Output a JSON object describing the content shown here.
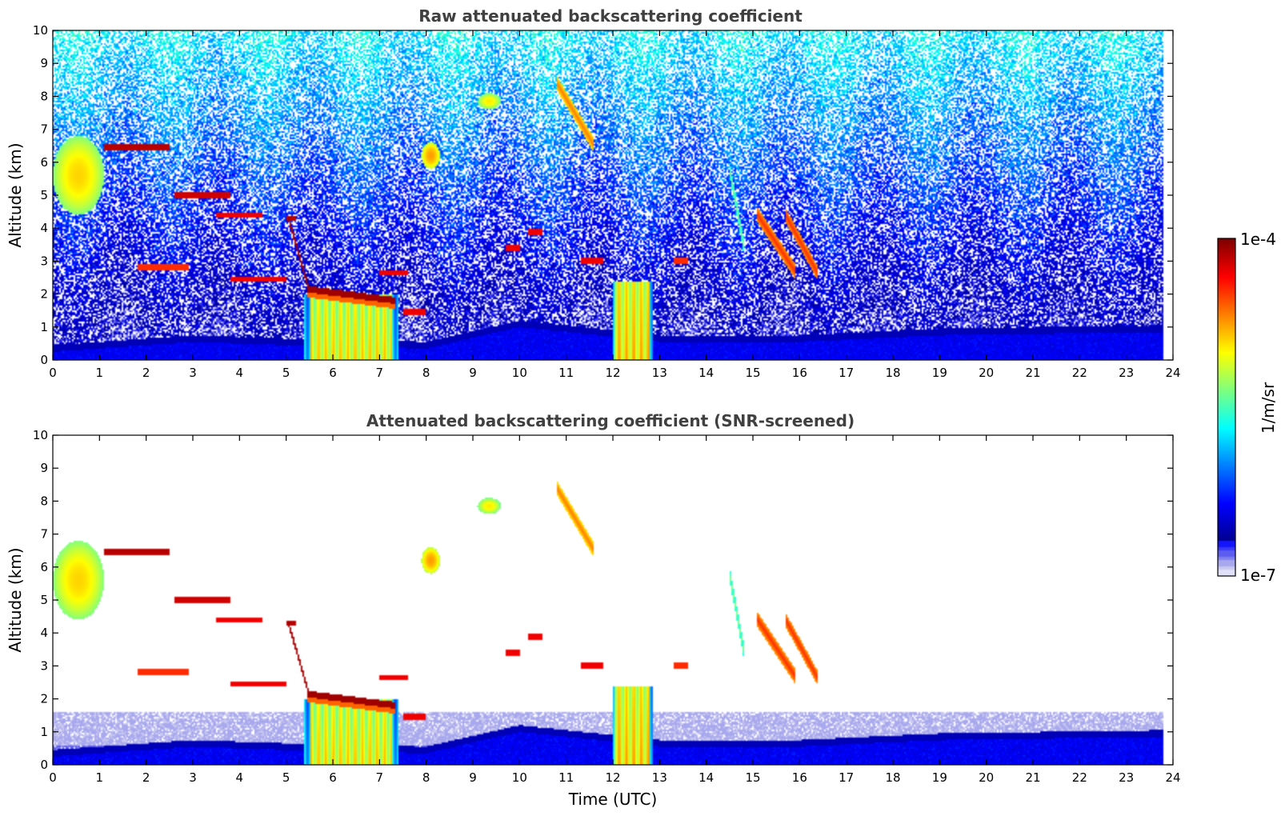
{
  "colors": {
    "jet": [
      "#00008f",
      "#0000ff",
      "#007fff",
      "#00ffff",
      "#7fff7f",
      "#ffff00",
      "#ff7f00",
      "#ff0000",
      "#7f0000"
    ],
    "low_levels": [
      "#e0e0f8",
      "#c8c8f0",
      "#a8a8ee",
      "#8080ee",
      "#5c5cf0",
      "#3a3af6",
      "#1515fc"
    ],
    "frame": "#000000",
    "title_color": "#404040"
  },
  "chart_data": [
    {
      "type": "heatmap",
      "title": "Raw attenuated backscattering coefficient",
      "ylabel": "Altitude (km)",
      "xlabel": "",
      "xlim": [
        0,
        24
      ],
      "ylim": [
        0,
        10
      ],
      "x_ticks": [
        "0",
        "1",
        "2",
        "3",
        "4",
        "5",
        "6",
        "7",
        "8",
        "9",
        "10",
        "11",
        "12",
        "13",
        "14",
        "15",
        "16",
        "17",
        "18",
        "19",
        "20",
        "21",
        "22",
        "23",
        "24"
      ],
      "y_ticks": [
        "0",
        "1",
        "2",
        "3",
        "4",
        "5",
        "6",
        "7",
        "8",
        "9",
        "10"
      ],
      "data_end_time": 23.8,
      "noise": "strong (noisy background at all altitudes)",
      "boundary_layer": [
        {
          "t": 0,
          "top": 0.25
        },
        {
          "t": 3,
          "top": 0.55
        },
        {
          "t": 5,
          "top": 0.45
        },
        {
          "t": 8,
          "top": 0.35
        },
        {
          "t": 10,
          "top": 1.0
        },
        {
          "t": 13,
          "top": 0.55
        },
        {
          "t": 16,
          "top": 0.55
        },
        {
          "t": 19,
          "top": 0.75
        },
        {
          "t": 23.8,
          "top": 0.85
        }
      ],
      "features": [
        {
          "kind": "cloud",
          "t0": 0.0,
          "t1": 1.1,
          "z0": 4.4,
          "z1": 6.8,
          "level": 0.7
        },
        {
          "kind": "layer",
          "t0": 1.1,
          "t1": 2.5,
          "z": 6.45,
          "level": 0.95
        },
        {
          "kind": "layer",
          "t0": 2.6,
          "t1": 3.8,
          "z": 5.0,
          "level": 0.93
        },
        {
          "kind": "layer",
          "t0": 3.5,
          "t1": 4.5,
          "z": 4.4,
          "level": 0.9
        },
        {
          "kind": "layer",
          "t0": 1.8,
          "t1": 2.9,
          "z": 2.8,
          "level": 0.85
        },
        {
          "kind": "layer",
          "t0": 3.8,
          "t1": 5.0,
          "z": 2.45,
          "level": 0.9
        },
        {
          "kind": "layer",
          "t0": 5.0,
          "t1": 5.2,
          "z": 4.3,
          "level": 0.95
        },
        {
          "kind": "descending_layer",
          "t0": 5.05,
          "t1": 5.5,
          "z0": 4.3,
          "z1": 2.1,
          "level": 0.97
        },
        {
          "kind": "cloud_top",
          "t0": 5.45,
          "t1": 7.35,
          "z0": 2.15,
          "z1": 1.8,
          "level": 0.97
        },
        {
          "kind": "precipitation",
          "t0": 5.4,
          "t1": 7.4,
          "z0": 0.0,
          "z1": 2.0,
          "level": 0.65
        },
        {
          "kind": "layer",
          "t0": 7.0,
          "t1": 7.6,
          "z": 2.65,
          "level": 0.9
        },
        {
          "kind": "layer",
          "t0": 7.5,
          "t1": 8.0,
          "z": 1.45,
          "level": 0.9
        },
        {
          "kind": "cloud",
          "t0": 7.9,
          "t1": 8.3,
          "z0": 5.8,
          "z1": 6.6,
          "level": 0.75
        },
        {
          "kind": "cloud",
          "t0": 9.1,
          "t1": 9.6,
          "z0": 7.6,
          "z1": 8.1,
          "level": 0.68
        },
        {
          "kind": "layer",
          "t0": 9.7,
          "t1": 10.0,
          "z": 3.4,
          "level": 0.9
        },
        {
          "kind": "layer",
          "t0": 10.2,
          "t1": 10.5,
          "z": 3.9,
          "level": 0.9
        },
        {
          "kind": "fallstreak",
          "t0": 10.8,
          "t1": 11.6,
          "z0": 8.4,
          "z1": 6.5,
          "level": 0.78
        },
        {
          "kind": "layer",
          "t0": 11.3,
          "t1": 11.8,
          "z": 3.0,
          "level": 0.9
        },
        {
          "kind": "precipitation",
          "t0": 12.0,
          "t1": 12.85,
          "z0": 0.0,
          "z1": 2.4,
          "level": 0.68
        },
        {
          "kind": "layer",
          "t0": 13.3,
          "t1": 13.6,
          "z": 3.0,
          "level": 0.85
        },
        {
          "kind": "fallstreak",
          "t0": 14.5,
          "t1": 14.8,
          "z0": 5.8,
          "z1": 3.5,
          "level": 0.55
        },
        {
          "kind": "fallstreak",
          "t0": 15.1,
          "t1": 15.9,
          "z0": 4.4,
          "z1": 2.7,
          "level": 0.85
        },
        {
          "kind": "fallstreak",
          "t0": 15.7,
          "t1": 16.4,
          "z0": 4.4,
          "z1": 2.6,
          "level": 0.85
        }
      ]
    },
    {
      "type": "heatmap",
      "title": "Attenuated backscattering coefficient (SNR-screened)",
      "ylabel": "Altitude (km)",
      "xlabel": "Time (UTC)",
      "xlim": [
        0,
        24
      ],
      "ylim": [
        0,
        10
      ],
      "x_ticks": [
        "0",
        "1",
        "2",
        "3",
        "4",
        "5",
        "6",
        "7",
        "8",
        "9",
        "10",
        "11",
        "12",
        "13",
        "14",
        "15",
        "16",
        "17",
        "18",
        "19",
        "20",
        "21",
        "22",
        "23",
        "24"
      ],
      "y_ticks": [
        "0",
        "1",
        "2",
        "3",
        "4",
        "5",
        "6",
        "7",
        "8",
        "9",
        "10"
      ],
      "data_end_time": 23.8,
      "noise": "none (screened, white background)",
      "aerosol_layer_top": 1.6,
      "boundary_layer": [
        {
          "t": 0,
          "top": 0.25
        },
        {
          "t": 3,
          "top": 0.55
        },
        {
          "t": 5,
          "top": 0.45
        },
        {
          "t": 8,
          "top": 0.35
        },
        {
          "t": 10,
          "top": 1.0
        },
        {
          "t": 13,
          "top": 0.55
        },
        {
          "t": 16,
          "top": 0.55
        },
        {
          "t": 19,
          "top": 0.75
        },
        {
          "t": 23.8,
          "top": 0.85
        }
      ],
      "features": [
        {
          "kind": "cloud",
          "t0": 0.0,
          "t1": 1.1,
          "z0": 4.4,
          "z1": 6.8,
          "level": 0.7
        },
        {
          "kind": "layer",
          "t0": 1.1,
          "t1": 2.5,
          "z": 6.45,
          "level": 0.95
        },
        {
          "kind": "layer",
          "t0": 2.6,
          "t1": 3.8,
          "z": 5.0,
          "level": 0.93
        },
        {
          "kind": "layer",
          "t0": 3.5,
          "t1": 4.5,
          "z": 4.4,
          "level": 0.9
        },
        {
          "kind": "layer",
          "t0": 1.8,
          "t1": 2.9,
          "z": 2.8,
          "level": 0.85
        },
        {
          "kind": "layer",
          "t0": 3.8,
          "t1": 5.0,
          "z": 2.45,
          "level": 0.9
        },
        {
          "kind": "layer",
          "t0": 5.0,
          "t1": 5.2,
          "z": 4.3,
          "level": 0.95
        },
        {
          "kind": "descending_layer",
          "t0": 5.05,
          "t1": 5.5,
          "z0": 4.3,
          "z1": 2.1,
          "level": 0.97
        },
        {
          "kind": "cloud_top",
          "t0": 5.45,
          "t1": 7.35,
          "z0": 2.15,
          "z1": 1.8,
          "level": 0.97
        },
        {
          "kind": "precipitation",
          "t0": 5.4,
          "t1": 7.4,
          "z0": 0.0,
          "z1": 2.0,
          "level": 0.65
        },
        {
          "kind": "layer",
          "t0": 7.0,
          "t1": 7.6,
          "z": 2.65,
          "level": 0.9
        },
        {
          "kind": "layer",
          "t0": 7.5,
          "t1": 8.0,
          "z": 1.45,
          "level": 0.9
        },
        {
          "kind": "cloud",
          "t0": 7.9,
          "t1": 8.3,
          "z0": 5.8,
          "z1": 6.6,
          "level": 0.75
        },
        {
          "kind": "cloud",
          "t0": 9.1,
          "t1": 9.6,
          "z0": 7.6,
          "z1": 8.1,
          "level": 0.68
        },
        {
          "kind": "layer",
          "t0": 9.7,
          "t1": 10.0,
          "z": 3.4,
          "level": 0.9
        },
        {
          "kind": "layer",
          "t0": 10.2,
          "t1": 10.5,
          "z": 3.9,
          "level": 0.9
        },
        {
          "kind": "fallstreak",
          "t0": 10.8,
          "t1": 11.6,
          "z0": 8.4,
          "z1": 6.5,
          "level": 0.78
        },
        {
          "kind": "layer",
          "t0": 11.3,
          "t1": 11.8,
          "z": 3.0,
          "level": 0.9
        },
        {
          "kind": "precipitation",
          "t0": 12.0,
          "t1": 12.85,
          "z0": 0.0,
          "z1": 2.4,
          "level": 0.68
        },
        {
          "kind": "layer",
          "t0": 13.3,
          "t1": 13.6,
          "z": 3.0,
          "level": 0.85
        },
        {
          "kind": "fallstreak",
          "t0": 14.5,
          "t1": 14.8,
          "z0": 5.8,
          "z1": 3.5,
          "level": 0.55
        },
        {
          "kind": "fallstreak",
          "t0": 15.1,
          "t1": 15.9,
          "z0": 4.4,
          "z1": 2.7,
          "level": 0.85
        },
        {
          "kind": "fallstreak",
          "t0": 15.7,
          "t1": 16.4,
          "z0": 4.4,
          "z1": 2.6,
          "level": 0.85
        }
      ]
    }
  ],
  "colorbar": {
    "label": "1/m/sr",
    "max_label": "1e-4",
    "min_label": "1e-7",
    "scale": "log",
    "range": [
      1e-07,
      0.0001
    ]
  }
}
